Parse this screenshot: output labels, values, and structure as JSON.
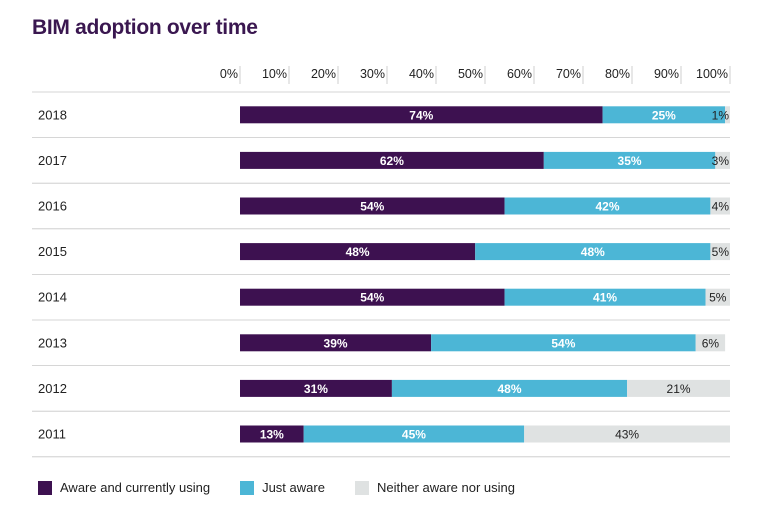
{
  "chart_data": {
    "type": "bar",
    "orientation": "horizontal",
    "stacked": true,
    "title": "BIM adoption over time",
    "xlabel": "",
    "ylabel": "",
    "xlim": [
      0,
      100
    ],
    "x_ticks": [
      "0%",
      "10%",
      "20%",
      "30%",
      "40%",
      "50%",
      "60%",
      "70%",
      "80%",
      "90%",
      "100%"
    ],
    "categories": [
      "2018",
      "2017",
      "2016",
      "2015",
      "2014",
      "2013",
      "2012",
      "2011"
    ],
    "series": [
      {
        "name": "Aware and currently using",
        "color": "#3d1150",
        "values": [
          74,
          62,
          54,
          48,
          54,
          39,
          31,
          13
        ]
      },
      {
        "name": "Just aware",
        "color": "#4cb6d6",
        "values": [
          25,
          35,
          42,
          48,
          41,
          54,
          48,
          45
        ]
      },
      {
        "name": "Neither aware nor using",
        "color": "#dfe2e2",
        "values": [
          1,
          3,
          4,
          5,
          5,
          6,
          21,
          43
        ]
      }
    ],
    "legend_position": "bottom-left",
    "grid": true
  }
}
